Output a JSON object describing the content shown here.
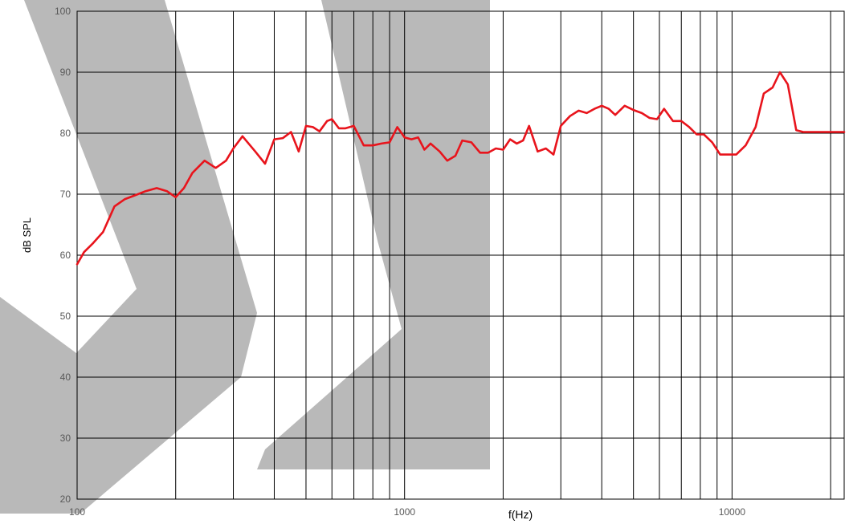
{
  "chart_data": {
    "type": "line",
    "xscale": "log",
    "xlim": [
      100,
      22000
    ],
    "ylim": [
      20,
      100
    ],
    "grid": true,
    "xlabel": "f(Hz)",
    "ylabel": "dB SPL",
    "x_ticks": [
      100,
      1000,
      10000
    ],
    "x_tick_labels": [
      "100",
      "1000",
      "10000"
    ],
    "y_ticks": [
      20,
      30,
      40,
      50,
      60,
      70,
      80,
      90,
      100
    ],
    "y_tick_labels": [
      "20",
      "30",
      "40",
      "50",
      "60",
      "70",
      "80",
      "90",
      "100"
    ],
    "series": [
      {
        "color": "#e8141c",
        "x": [
          100,
          105,
          112,
          120,
          130,
          140,
          150,
          162,
          175,
          188,
          200,
          212,
          225,
          245,
          265,
          285,
          300,
          320,
          350,
          375,
          400,
          425,
          450,
          475,
          500,
          525,
          550,
          580,
          600,
          630,
          660,
          700,
          750,
          800,
          850,
          900,
          950,
          1000,
          1050,
          1100,
          1150,
          1200,
          1280,
          1350,
          1430,
          1500,
          1600,
          1700,
          1800,
          1900,
          2000,
          2100,
          2200,
          2300,
          2400,
          2550,
          2700,
          2850,
          3000,
          3200,
          3400,
          3600,
          3800,
          4000,
          4200,
          4400,
          4700,
          5000,
          5300,
          5600,
          5900,
          6200,
          6600,
          7000,
          7400,
          7800,
          8200,
          8700,
          9200,
          9800,
          10300,
          11000,
          11800,
          12500,
          13300,
          14000,
          14800,
          15700,
          16500,
          17300,
          18200,
          19000,
          19800,
          20500,
          21300,
          22000
        ],
        "y": [
          58.5,
          60.5,
          62,
          63.8,
          68,
          69.2,
          69.8,
          70.5,
          71,
          70.5,
          69.5,
          71,
          73.5,
          75.5,
          74.3,
          75.5,
          77.5,
          79.5,
          77,
          75,
          79,
          79.2,
          80.2,
          77,
          81.2,
          81,
          80.3,
          82,
          82.3,
          80.8,
          80.8,
          81.2,
          78,
          78,
          78.3,
          78.5,
          81,
          79.3,
          79,
          79.3,
          77.3,
          78.3,
          77,
          75.5,
          76.3,
          78.8,
          78.5,
          76.8,
          76.8,
          77.5,
          77.3,
          79,
          78.3,
          78.8,
          81.2,
          77,
          77.5,
          76.5,
          81.2,
          82.8,
          83.7,
          83.3,
          84,
          84.5,
          84,
          83,
          84.5,
          83.8,
          83.3,
          82.5,
          82.3,
          84,
          82,
          82,
          81,
          79.8,
          79.8,
          78.5,
          76.5,
          76.5,
          76.5,
          78,
          81,
          86.5,
          87.5,
          90,
          88,
          80.5,
          80.2,
          80.2,
          80.2,
          80.2,
          80.2,
          80.2,
          80.2,
          80.2
        ]
      }
    ]
  }
}
